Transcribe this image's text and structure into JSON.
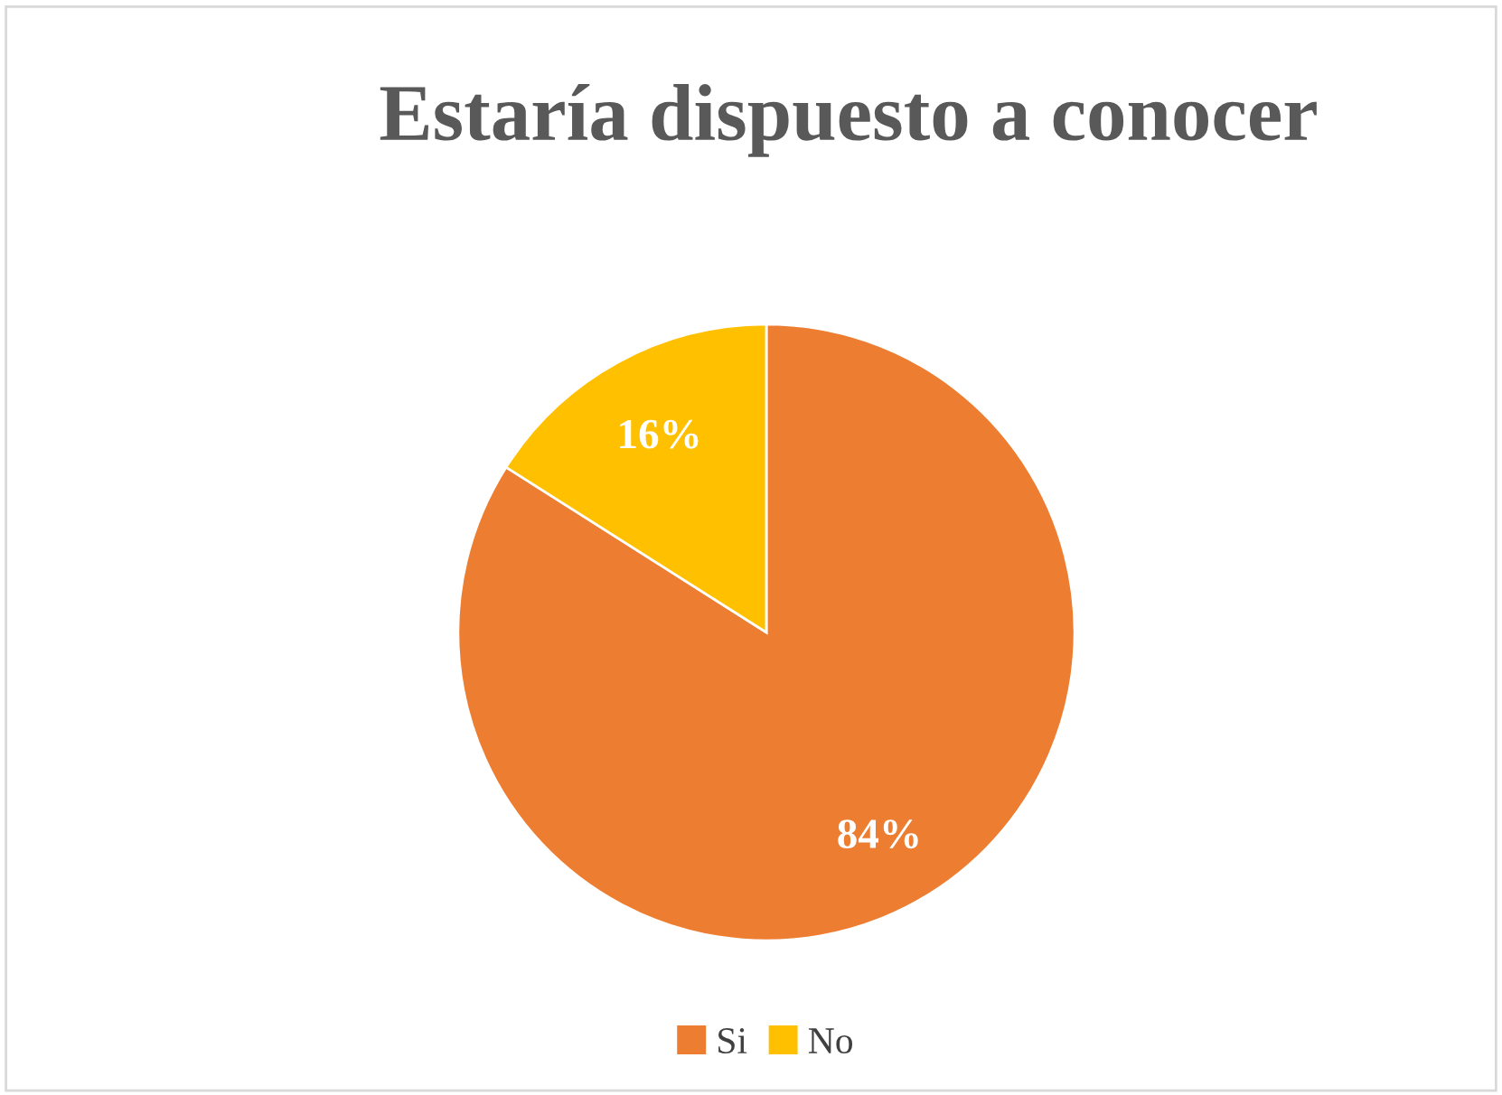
{
  "chart_data": {
    "type": "pie",
    "title": "Estaría dispuesto a conocer",
    "categories": [
      "Si",
      "No"
    ],
    "values": [
      84,
      16
    ],
    "colors": [
      "#ed7d31",
      "#ffc000"
    ],
    "value_labels": [
      "84%",
      "16%"
    ],
    "legend": "bottom"
  }
}
